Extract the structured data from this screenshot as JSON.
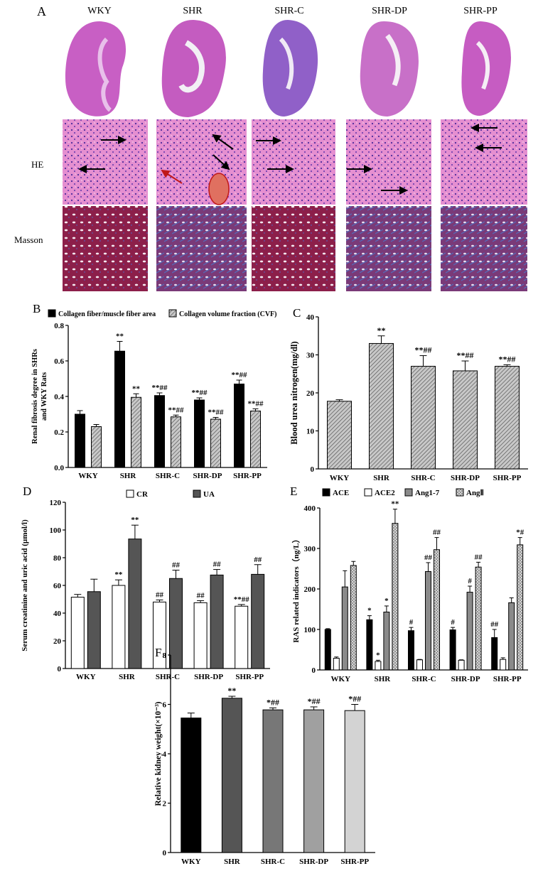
{
  "panel_a": {
    "label": "A",
    "groups": [
      "WKY",
      "SHR",
      "SHR-C",
      "SHR-DP",
      "SHR-PP"
    ],
    "row_labels": [
      "HE",
      "Masson"
    ]
  },
  "chart_data": [
    {
      "id": "B",
      "panel_label": "B",
      "type": "bar",
      "categories": [
        "WKY",
        "SHR",
        "SHR-C",
        "SHR-DP",
        "SHR-PP"
      ],
      "ylabel": "Renal fibrosis degree in SHRs and WKY Rats",
      "ylim": [
        0,
        0.8
      ],
      "yticks": [
        "0.0",
        "0.2",
        "0.4",
        "0.6",
        "0.8"
      ],
      "legend_position": "top",
      "series": [
        {
          "name": "Collagen fiber/muscle fiber area",
          "fill": "#000000",
          "pattern": "solid",
          "values": [
            0.3,
            0.655,
            0.405,
            0.38,
            0.47
          ],
          "errors": [
            0.02,
            0.055,
            0.015,
            0.012,
            0.022
          ],
          "marks": [
            "",
            "**",
            "**##",
            "**##",
            "**##"
          ]
        },
        {
          "name": "Collagen volume fraction (CVF)",
          "fill": "#a0a0a0",
          "pattern": "hatch",
          "values": [
            0.23,
            0.395,
            0.285,
            0.272,
            0.318
          ],
          "errors": [
            0.012,
            0.02,
            0.01,
            0.01,
            0.012
          ],
          "marks": [
            "",
            "**",
            "**##",
            "**##",
            "**##"
          ]
        }
      ]
    },
    {
      "id": "C",
      "panel_label": "C",
      "type": "bar",
      "categories": [
        "WKY",
        "SHR",
        "SHR-C",
        "SHR-DP",
        "SHR-PP"
      ],
      "ylabel": "Blood urea nitrogen(mg/dl)",
      "ylim": [
        0,
        40
      ],
      "yticks": [
        "0",
        "10",
        "20",
        "30",
        "40"
      ],
      "series": [
        {
          "fill": "#a0a0a0",
          "pattern": "hatch",
          "values": [
            17.8,
            33.0,
            27.0,
            25.8,
            27.0
          ],
          "errors": [
            0.4,
            2.0,
            2.8,
            2.6,
            0.4
          ],
          "marks": [
            "",
            "**",
            "**##",
            "**##",
            "**##"
          ]
        }
      ]
    },
    {
      "id": "D",
      "panel_label": "D",
      "type": "bar",
      "categories": [
        "WKY",
        "SHR",
        "SHR-C",
        "SHR-DP",
        "SHR-PP"
      ],
      "ylabel": "Serum creatinine and uric acid (µmol/l)",
      "ylim": [
        0,
        120
      ],
      "yticks": [
        "0",
        "20",
        "40",
        "60",
        "80",
        "100",
        "120"
      ],
      "legend_position": "top",
      "series": [
        {
          "name": "CR",
          "fill": "#ffffff",
          "pattern": "solid",
          "values": [
            51.5,
            60.0,
            48.0,
            47.5,
            45.0
          ],
          "errors": [
            2.0,
            4.0,
            1.5,
            1.5,
            1.2
          ],
          "marks": [
            "",
            "**",
            "##",
            "##",
            "**##"
          ]
        },
        {
          "name": "UA",
          "fill": "#555555",
          "pattern": "solid",
          "values": [
            55.5,
            93.5,
            65.0,
            67.5,
            68.0
          ],
          "errors": [
            9.0,
            10.0,
            6.0,
            4.0,
            7.0
          ],
          "marks": [
            "",
            "**",
            "##",
            "##",
            "##"
          ]
        }
      ]
    },
    {
      "id": "E",
      "panel_label": "E",
      "type": "bar",
      "categories": [
        "WKY",
        "SHR",
        "SHR-C",
        "SHR-DP",
        "SHR-PP"
      ],
      "ylabel": "RAS related indicators（ng/L）",
      "ylim": [
        0,
        400
      ],
      "yticks": [
        "0",
        "100",
        "200",
        "300",
        "400"
      ],
      "legend_position": "top",
      "series": [
        {
          "name": "ACE",
          "fill": "#000000",
          "pattern": "solid",
          "values": [
            100,
            124,
            97,
            99,
            80
          ],
          "errors": [
            2,
            10,
            8,
            6,
            20
          ],
          "marks": [
            "",
            "*",
            "#",
            "#",
            "##"
          ]
        },
        {
          "name": "ACE2",
          "fill": "#ffffff",
          "pattern": "solid",
          "values": [
            29,
            21,
            25,
            24,
            26
          ],
          "errors": [
            3,
            3,
            1,
            1,
            4
          ],
          "marks": [
            "",
            "*",
            "",
            "",
            ""
          ]
        },
        {
          "name": "Ang1-7",
          "fill": "#8a8a8a",
          "pattern": "solid",
          "values": [
            205,
            143,
            243,
            192,
            166
          ],
          "errors": [
            40,
            15,
            22,
            15,
            12
          ],
          "marks": [
            "",
            "*",
            "##",
            "#",
            ""
          ]
        },
        {
          "name": "AngⅡ",
          "fill": "#dcdcdc",
          "pattern": "cross",
          "values": [
            258,
            362,
            297,
            254,
            309
          ],
          "errors": [
            10,
            35,
            30,
            12,
            18
          ],
          "marks": [
            "",
            "**",
            "##",
            "##",
            "*#"
          ]
        }
      ]
    },
    {
      "id": "F",
      "panel_label": "F",
      "type": "bar",
      "categories": [
        "WKY",
        "SHR",
        "SHR-C",
        "SHR-DP",
        "SHR-PP"
      ],
      "ylabel": "Relative kidney weight(×10⁻³)",
      "ylim": [
        0,
        8
      ],
      "yticks": [
        "0",
        "2",
        "4",
        "6",
        "8"
      ],
      "series": [
        {
          "fill": "#000000",
          "pattern": "solid",
          "values": [
            5.45,
            6.25,
            5.78,
            5.78,
            5.75
          ],
          "errors": [
            0.2,
            0.08,
            0.08,
            0.12,
            0.25
          ],
          "fills": [
            "#000000",
            "#555555",
            "#777777",
            "#a0a0a0",
            "#d3d3d3"
          ],
          "marks": [
            "",
            "**",
            "*##",
            "*##",
            "*##"
          ]
        }
      ]
    }
  ]
}
